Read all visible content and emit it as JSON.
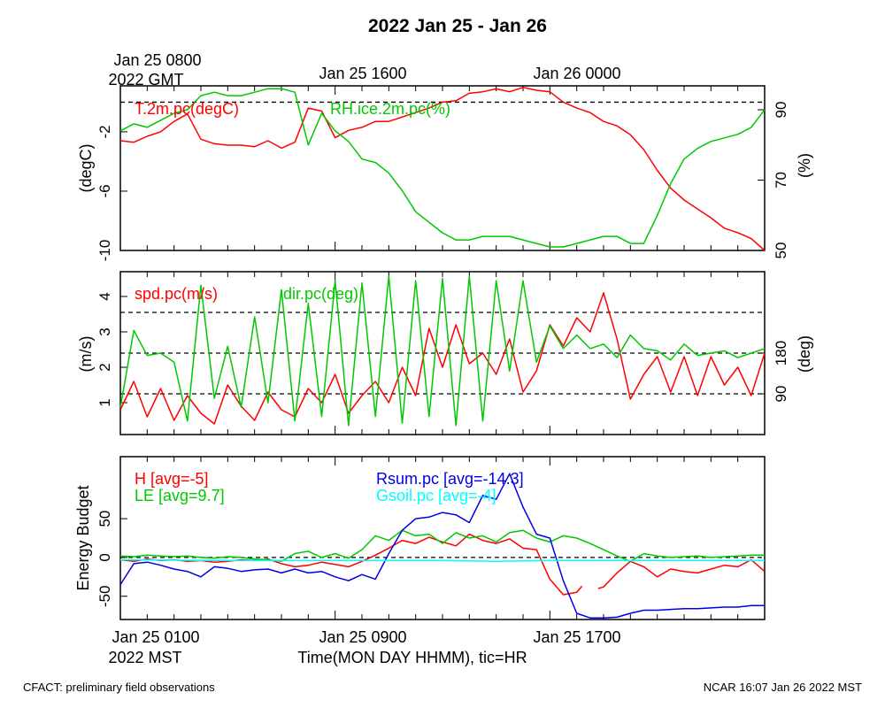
{
  "title": "2022 Jan 25 - Jan 26",
  "gmt_label": {
    "line1": "Jan 25 0800",
    "line2": "2022 GMT"
  },
  "gmt_ticks": [
    "Jan 25 1600",
    "Jan 26 0000"
  ],
  "mst_ticks": [
    "Jan 25 0100",
    "Jan 25 0900",
    "Jan 25 1700"
  ],
  "mst_year": "2022 MST",
  "xlabel": "Time(MON DAY HHMM), tic=HR",
  "footer": {
    "left": "CFACT: preliminary field observations",
    "right": "NCAR 16:07 Jan 26 2022 MST"
  },
  "colors": {
    "red": "#ff0000",
    "green": "#00c800",
    "blue": "#0000e6",
    "cyan": "#00ffff",
    "black": "#000000"
  },
  "chart_data": [
    {
      "type": "line",
      "panel": "temperature-humidity",
      "x_range_hours_mst": [
        0,
        24
      ],
      "left_axis": {
        "label": "(degC)",
        "range": [
          -10,
          1.1
        ],
        "ticks": [
          "-10",
          "-6",
          "-2"
        ],
        "tick_values": [
          -10,
          -6,
          -2
        ]
      },
      "right_axis": {
        "label": "(%)",
        "range": [
          50,
          96.8
        ],
        "ticks": [
          "50",
          "70",
          "90"
        ],
        "tick_values": [
          50,
          70,
          90
        ]
      },
      "ref_lines_left": [
        0
      ],
      "series": [
        {
          "name": "T.2m.pc(degC)",
          "color": "red",
          "axis": "left",
          "x": [
            0,
            0.5,
            1,
            1.5,
            2,
            2.5,
            3,
            3.5,
            4,
            4.5,
            5,
            5.5,
            6,
            6.5,
            7,
            7.5,
            8,
            8.5,
            9,
            9.5,
            10,
            10.5,
            11,
            11.5,
            12,
            12.5,
            13,
            13.5,
            14,
            14.5,
            15,
            15.5,
            16,
            16.5,
            17,
            17.5,
            18,
            18.5,
            19,
            19.5,
            20,
            20.5,
            21,
            21.5,
            22,
            22.5,
            23,
            23.5,
            24
          ],
          "values": [
            -2.6,
            -2.7,
            -2.3,
            -2.0,
            -1.3,
            -0.8,
            -2.5,
            -2.8,
            -2.9,
            -2.9,
            -3.0,
            -2.6,
            -3.1,
            -2.7,
            -0.4,
            -0.6,
            -2.4,
            -1.9,
            -1.7,
            -1.3,
            -1.3,
            -1.0,
            -0.7,
            -0.4,
            0.0,
            0.1,
            0.6,
            0.7,
            0.9,
            0.7,
            1.0,
            0.8,
            0.7,
            0.0,
            -0.4,
            -0.7,
            -1.3,
            -1.6,
            -2.2,
            -3.2,
            -4.6,
            -5.8,
            -6.6,
            -7.2,
            -7.8,
            -8.5,
            -8.8,
            -9.2,
            -10.0
          ]
        },
        {
          "name": "RH.ice.2m.pc(%)",
          "color": "green",
          "axis": "right",
          "x": [
            0,
            0.5,
            1,
            1.5,
            2,
            2.5,
            3,
            3.5,
            4,
            4.5,
            5,
            5.5,
            6,
            6.5,
            7,
            7.5,
            8,
            8.5,
            9,
            9.5,
            10,
            10.5,
            11,
            11.5,
            12,
            12.5,
            13,
            13.5,
            14,
            14.5,
            15,
            15.5,
            16,
            16.5,
            17,
            17.5,
            18,
            18.5,
            19,
            19.5,
            20,
            20.5,
            21,
            21.5,
            22,
            22.5,
            23,
            23.5,
            24
          ],
          "values": [
            84,
            86,
            85,
            87,
            89,
            90,
            94,
            95,
            94,
            94,
            95,
            96,
            96,
            95,
            80,
            89,
            84,
            81,
            76,
            75,
            72,
            67,
            61,
            58,
            55,
            53,
            53,
            54,
            54,
            54,
            53,
            52,
            51,
            51,
            52,
            53,
            54,
            54,
            52,
            52,
            60,
            69,
            76,
            79,
            81,
            82,
            83,
            85,
            90
          ]
        }
      ]
    },
    {
      "type": "line",
      "panel": "wind",
      "x_range_hours_mst": [
        0,
        24
      ],
      "left_axis": {
        "label": "(m/s)",
        "range": [
          0.1,
          4.7
        ],
        "ticks": [
          "1",
          "2",
          "3",
          "4"
        ],
        "tick_values": [
          1,
          2,
          3,
          4
        ]
      },
      "right_axis": {
        "label": "(deg)",
        "range": [
          0,
          360
        ],
        "ticks": [
          "90",
          "180"
        ],
        "tick_values": [
          90,
          180
        ]
      },
      "ref_lines_right": [
        90,
        180,
        270
      ],
      "series": [
        {
          "name": "spd.pc(m/s)",
          "color": "red",
          "axis": "left",
          "x": [
            0,
            0.5,
            1,
            1.5,
            2,
            2.5,
            3,
            3.5,
            4,
            4.5,
            5,
            5.5,
            6,
            6.5,
            7,
            7.5,
            8,
            8.5,
            9,
            9.5,
            10,
            10.5,
            11,
            11.5,
            12,
            12.5,
            13,
            13.5,
            14,
            14.5,
            15,
            15.5,
            16,
            16.5,
            17,
            17.5,
            18,
            18.5,
            19,
            19.5,
            20,
            20.5,
            21,
            21.5,
            22,
            22.5,
            23,
            23.5,
            24
          ],
          "values": [
            0.8,
            1.6,
            0.6,
            1.4,
            0.5,
            1.2,
            0.7,
            0.4,
            1.5,
            0.9,
            0.5,
            1.3,
            0.8,
            0.6,
            1.4,
            1.0,
            1.8,
            0.7,
            1.2,
            1.6,
            1.0,
            2.0,
            1.2,
            3.1,
            2.0,
            3.2,
            2.1,
            2.4,
            1.8,
            2.8,
            1.3,
            1.9,
            3.2,
            2.6,
            3.4,
            3.0,
            4.1,
            2.8,
            1.1,
            1.8,
            2.3,
            1.3,
            2.3,
            1.2,
            2.3,
            1.5,
            2.0,
            1.2,
            2.4
          ]
        },
        {
          "name": "dir.pc(deg)",
          "color": "green",
          "axis": "right",
          "x": [
            0,
            0.5,
            1,
            1.5,
            2,
            2.5,
            3,
            3.5,
            4,
            4.5,
            5,
            5.5,
            6,
            6.5,
            7,
            7.5,
            8,
            8.5,
            9,
            9.5,
            10,
            10.5,
            11,
            11.5,
            12,
            12.5,
            13,
            13.5,
            14,
            14.5,
            15,
            15.5,
            16,
            16.5,
            17,
            17.5,
            18,
            18.5,
            19,
            19.5,
            20,
            20.5,
            21,
            21.5,
            22,
            22.5,
            23,
            23.5,
            24
          ],
          "values": [
            60,
            230,
            175,
            180,
            160,
            30,
            330,
            80,
            195,
            60,
            260,
            70,
            320,
            30,
            290,
            40,
            340,
            20,
            335,
            40,
            350,
            25,
            340,
            40,
            345,
            20,
            350,
            30,
            340,
            140,
            340,
            160,
            240,
            190,
            220,
            190,
            200,
            170,
            220,
            190,
            185,
            165,
            200,
            175,
            180,
            185,
            170,
            180,
            190
          ]
        }
      ]
    },
    {
      "type": "line",
      "panel": "energy-budget",
      "x_range_hours_mst": [
        0,
        24
      ],
      "left_axis": {
        "label": "Energy Budget",
        "range": [
          -80,
          130
        ],
        "ticks": [
          "-50",
          "0",
          "50"
        ],
        "tick_values": [
          -50,
          0,
          50
        ]
      },
      "ref_lines_left": [
        0
      ],
      "series": [
        {
          "name": "H [avg=-5]",
          "color": "red",
          "gaps": [
            [
              17.2,
              17.8
            ]
          ],
          "x": [
            0,
            0.5,
            1,
            1.5,
            2,
            2.5,
            3,
            3.5,
            4,
            4.5,
            5,
            5.5,
            6,
            6.5,
            7,
            7.5,
            8,
            8.5,
            9,
            9.5,
            10,
            10.5,
            11,
            11.5,
            12,
            12.5,
            13,
            13.5,
            14,
            14.5,
            15,
            15.5,
            16,
            16.5,
            17,
            17.2,
            17.8,
            18,
            18.5,
            19,
            19.5,
            20,
            20.5,
            21,
            21.5,
            22,
            22.5,
            23,
            23.5,
            24
          ],
          "values": [
            -3,
            -5,
            -2,
            -4,
            -3,
            -5,
            -4,
            -6,
            -5,
            -3,
            -4,
            -2,
            -8,
            -12,
            -10,
            -6,
            -9,
            -12,
            -5,
            3,
            12,
            22,
            18,
            26,
            20,
            15,
            30,
            22,
            18,
            24,
            12,
            10,
            -28,
            -48,
            -45,
            -37,
            -40,
            -38,
            -20,
            -5,
            -12,
            -25,
            -15,
            -18,
            -20,
            -15,
            -10,
            -12,
            -3,
            -18
          ]
        },
        {
          "name": "LE [avg=9.7]",
          "color": "green",
          "x": [
            0,
            0.5,
            1,
            1.5,
            2,
            2.5,
            3,
            3.5,
            4,
            4.5,
            5,
            5.5,
            6,
            6.5,
            7,
            7.5,
            8,
            8.5,
            9,
            9.5,
            10,
            10.5,
            11,
            11.5,
            12,
            12.5,
            13,
            13.5,
            14,
            14.5,
            15,
            15.5,
            16,
            16.5,
            17,
            17.5,
            18,
            18.5,
            19,
            19.5,
            20,
            20.5,
            21,
            21.5,
            22,
            22.5,
            23,
            23.5,
            24
          ],
          "values": [
            2,
            1,
            3,
            2,
            1,
            2,
            0,
            -1,
            1,
            0,
            -2,
            -3,
            -5,
            5,
            8,
            0,
            5,
            -1,
            10,
            28,
            22,
            35,
            28,
            30,
            18,
            32,
            25,
            28,
            20,
            32,
            35,
            25,
            20,
            28,
            25,
            18,
            10,
            2,
            -5,
            5,
            2,
            0,
            1,
            2,
            0,
            1,
            2,
            3,
            3
          ]
        },
        {
          "name": "Rsum.pc [avg=-14.3]",
          "color": "blue",
          "x": [
            0,
            0.5,
            1,
            1.5,
            2,
            2.5,
            3,
            3.5,
            4,
            4.5,
            5,
            5.5,
            6,
            6.5,
            7,
            7.5,
            8,
            8.5,
            9,
            9.5,
            10,
            10.5,
            11,
            11.5,
            12,
            12.5,
            13,
            13.5,
            14,
            14.5,
            15,
            15.5,
            16,
            16.5,
            17,
            17.5,
            18,
            18.5,
            19,
            19.5,
            20,
            20.5,
            21,
            21.5,
            22,
            22.5,
            23,
            23.5,
            24
          ],
          "values": [
            -35,
            -8,
            -6,
            -10,
            -15,
            -18,
            -25,
            -12,
            -14,
            -18,
            -16,
            -15,
            -20,
            -15,
            -20,
            -18,
            -25,
            -30,
            -22,
            -28,
            5,
            35,
            50,
            52,
            58,
            55,
            45,
            80,
            75,
            108,
            65,
            30,
            25,
            -30,
            -72,
            -78,
            -78,
            -77,
            -72,
            -68,
            -68,
            -67,
            -66,
            -66,
            -65,
            -64,
            -64,
            -62,
            -62
          ]
        },
        {
          "name": "Gsoil.pc [avg=-4]",
          "color": "cyan",
          "x": [
            0,
            4,
            8,
            10,
            12,
            14,
            16,
            18,
            20,
            22,
            24
          ],
          "values": [
            -3,
            -4,
            -4,
            -4,
            -4,
            -5,
            -4,
            -4,
            -4,
            -4,
            -4
          ]
        }
      ]
    }
  ]
}
